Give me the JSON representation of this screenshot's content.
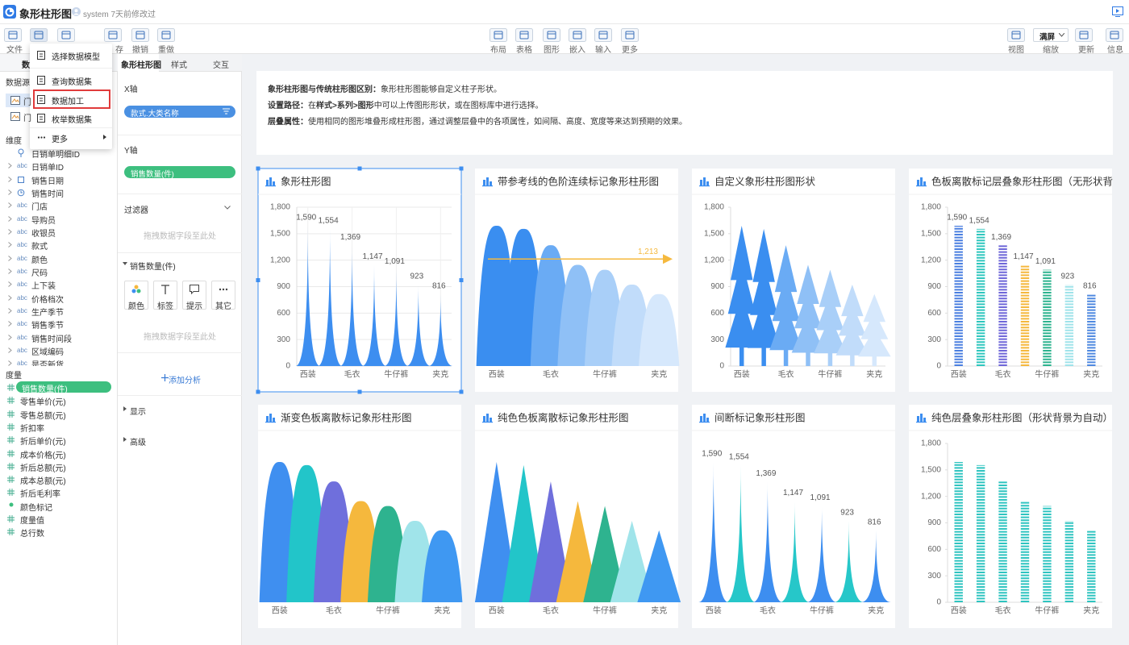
{
  "header": {
    "title": "象形柱形图",
    "status": "system 7天前修改过"
  },
  "toolbar": {
    "file": "文件",
    "save": "存",
    "undo": "撤销",
    "redo": "重做",
    "center": [
      "布局",
      "表格",
      "图形",
      "嵌入",
      "输入",
      "更多"
    ],
    "view": "视图",
    "zoom": "缩放",
    "zoom_value": "满屏",
    "refresh": "更新",
    "info": "信息"
  },
  "menu": {
    "items": [
      "选择数据模型",
      "查询数据集",
      "数据加工",
      "枚举数据集",
      "更多"
    ],
    "selected": 2
  },
  "left_panel": {
    "tab": "数",
    "source_label": "数据源",
    "sources": [
      "门",
      "门"
    ],
    "dimension_header": "维度",
    "dimensions": [
      {
        "name": "日销单明细ID",
        "kind": "pin"
      },
      {
        "name": "日销单ID",
        "icon": "abc"
      },
      {
        "name": "销售日期",
        "kind": "date"
      },
      {
        "name": "销售时间",
        "kind": "time"
      },
      {
        "name": "门店",
        "icon": "abc"
      },
      {
        "name": "导购员",
        "icon": "abc"
      },
      {
        "name": "收银员",
        "icon": "abc"
      },
      {
        "name": "款式",
        "icon": "abc"
      },
      {
        "name": "颜色",
        "icon": "abc"
      },
      {
        "name": "尺码",
        "icon": "abc"
      },
      {
        "name": "上下装",
        "icon": "abc"
      },
      {
        "name": "价格档次",
        "icon": "abc"
      },
      {
        "name": "生产季节",
        "icon": "abc"
      },
      {
        "name": "销售季节",
        "icon": "abc"
      },
      {
        "name": "销售时间段",
        "icon": "abc"
      },
      {
        "name": "区域编码",
        "icon": "abc"
      },
      {
        "name": "是否新货",
        "icon": "abc"
      }
    ],
    "measure_header": "度量",
    "measure_selected": 0,
    "measures": [
      {
        "name": "销售数量(件)",
        "kind": "number"
      },
      {
        "name": "零售单价(元)",
        "kind": "number"
      },
      {
        "name": "零售总额(元)",
        "kind": "number"
      },
      {
        "name": "折扣率",
        "kind": "number"
      },
      {
        "name": "折后单价(元)",
        "kind": "number"
      },
      {
        "name": "成本价格(元)",
        "kind": "number"
      },
      {
        "name": "折后总额(元)",
        "kind": "number"
      },
      {
        "name": "成本总额(元)",
        "kind": "number"
      },
      {
        "name": "折后毛利率",
        "kind": "number"
      },
      {
        "name": "颜色标记",
        "kind": "color"
      },
      {
        "name": "度量值",
        "kind": "number"
      },
      {
        "name": "总行数",
        "kind": "number"
      }
    ]
  },
  "config_panel": {
    "tabs": [
      "象形柱形图",
      "样式",
      "交互"
    ],
    "x_label": "X轴",
    "x_field": "款式.大类名称",
    "y_label": "Y轴",
    "y_field": "销售数量(件)",
    "filter": "过滤器",
    "drop_hint": "拖拽数据字段至此处",
    "section": "销售数量(件)",
    "buttons": [
      "颜色",
      "标签",
      "提示",
      "其它"
    ],
    "drop_hint_2": "拖拽数据字段至此处",
    "add_analysis": "添加分析",
    "display": "显示",
    "advanced": "高级"
  },
  "info": [
    [
      {
        "text": "象形柱形图与传统柱形图区别：",
        "bold": true
      },
      {
        "text": "象形柱形图能够自定义柱子形状。",
        "bold": false
      }
    ],
    [
      {
        "text": "设置路径：",
        "bold": true
      },
      {
        "text": "在",
        "bold": false
      },
      {
        "text": "样式>系列>图形",
        "bold": true
      },
      {
        "text": "中可以上传图形形状，或在图标库中进行选择。",
        "bold": false
      }
    ],
    [
      {
        "text": "层叠属性：",
        "bold": true
      },
      {
        "text": "使用相同的图形堆叠形成柱形图，通过调整层叠中的各项属性，如间隔、高度、宽度等来达到预期的效果。",
        "bold": false
      }
    ]
  ],
  "chart_data": [
    {
      "type": "bar",
      "shape": "spike",
      "title": "象形柱形图",
      "selected": true,
      "grid": true,
      "categories": [
        "西装",
        null,
        "毛衣",
        null,
        "牛仔裤",
        null,
        "夹克"
      ],
      "values": [
        1590,
        1554,
        1369,
        1147,
        1091,
        923,
        816
      ],
      "value_labels": [
        "1,590",
        "1,554",
        "1,369",
        "1,147",
        "1,091",
        "923",
        "816"
      ],
      "colors": [
        "#3d8ef0",
        "#3d8ef0",
        "#3d8ef0",
        "#3d8ef0",
        "#3d8ef0",
        "#3d8ef0",
        "#3d8ef0"
      ],
      "ylim": [
        0,
        1800
      ],
      "yticks": [
        0,
        300,
        600,
        900,
        {
          "value": 1200,
          "label": "1,200"
        },
        {
          "value": 1500,
          "label": "1,500"
        },
        {
          "value": 1800,
          "label": "1,800"
        }
      ]
    },
    {
      "type": "bar",
      "shape": "hill",
      "title": "带参考线的色阶连续标记象形柱形图",
      "categories": [
        "西装",
        null,
        "毛衣",
        null,
        "牛仔裤",
        null,
        "夹克"
      ],
      "values": [
        1590,
        1554,
        1369,
        1147,
        1091,
        923,
        816
      ],
      "colors": [
        "#3a8ef0",
        "#3a8ef0",
        "#6aabf4",
        "#8fc0f6",
        "#a9cff8",
        "#c1dcfa",
        "#d6e8fc"
      ],
      "ylim": [
        0,
        1800
      ],
      "reference_line": {
        "value": 1213,
        "label": "1,213",
        "color": "#f5b93e"
      }
    },
    {
      "type": "bar",
      "shape": "tree",
      "title": "自定义象形柱形图形状",
      "categories": [
        "西装",
        null,
        "毛衣",
        null,
        "牛仔裤",
        null,
        "夹克"
      ],
      "values": [
        1590,
        1554,
        1369,
        1147,
        1091,
        923,
        816
      ],
      "colors": [
        "#3a8ef0",
        "#3a8ef0",
        "#6aabf4",
        "#8fc0f6",
        "#a9cff8",
        "#c1dcfa",
        "#d6e8fc"
      ],
      "ylim": [
        0,
        1800
      ],
      "yticks": [
        0,
        300,
        600,
        900,
        {
          "value": 1200,
          "label": "1,200"
        },
        {
          "value": 1500,
          "label": "1,500"
        },
        {
          "value": 1800,
          "label": "1,800"
        }
      ]
    },
    {
      "type": "bar",
      "shape": "dashed",
      "title": "色板离散标记层叠象形柱形图（无形状背",
      "categories": [
        "西装",
        null,
        "毛衣",
        null,
        "牛仔裤",
        null,
        "夹克"
      ],
      "values": [
        1590,
        1554,
        1369,
        1147,
        1091,
        923,
        816
      ],
      "value_labels": [
        "1,590",
        "1,554",
        "1,369",
        "1,147",
        "1,091",
        "923",
        "816"
      ],
      "colors": [
        "#4a7fe0",
        "#2ec6be",
        "#6e66d8",
        "#f5b83d",
        "#2cb38e",
        "#9fe3ea",
        "#4f89e0"
      ],
      "ylim": [
        0,
        1800
      ],
      "yticks": [
        0,
        300,
        600,
        900,
        {
          "value": 1200,
          "label": "1,200"
        },
        {
          "value": 1500,
          "label": "1,500"
        },
        {
          "value": 1800,
          "label": "1,800"
        }
      ]
    },
    {
      "type": "bar",
      "shape": "hill",
      "title": "渐变色板离散标记象形柱形图",
      "categories": [
        "西装",
        null,
        "毛衣",
        null,
        "牛仔裤",
        null,
        "夹克"
      ],
      "values": [
        1590,
        1554,
        1369,
        1147,
        1091,
        923,
        816
      ],
      "colors": [
        "#3f8ff0",
        "#22c5c9",
        "#6f6fdc",
        "#f5b83d",
        "#2eb38f",
        "#a0e4ea",
        "#3f98f2"
      ],
      "ylim": [
        0,
        1800
      ]
    },
    {
      "type": "bar",
      "shape": "triangle",
      "title": "纯色色板离散标记象形柱形图",
      "categories": [
        "西装",
        null,
        "毛衣",
        null,
        "牛仔裤",
        null,
        "夹克"
      ],
      "values": [
        1590,
        1554,
        1369,
        1147,
        1091,
        923,
        816
      ],
      "colors": [
        "#3f8ff0",
        "#22c5c9",
        "#6f6fdc",
        "#f5b83d",
        "#2eb38f",
        "#a0e4ea",
        "#3f98f2"
      ],
      "ylim": [
        0,
        1800
      ]
    },
    {
      "type": "bar",
      "shape": "spike",
      "title": "间断标记象形柱形图",
      "categories": [
        "西装",
        null,
        "毛衣",
        null,
        "牛仔裤",
        null,
        "夹克"
      ],
      "values": [
        1590,
        1554,
        1369,
        1147,
        1091,
        923,
        816
      ],
      "value_labels": [
        "1,590",
        "1,554",
        "1,369",
        "1,147",
        "1,091",
        "923",
        "816"
      ],
      "colors": [
        "#3d8ef0",
        "#26c7c9",
        "#3d8ef0",
        "#26c7c9",
        "#3d8ef0",
        "#26c7c9",
        "#3d8ef0"
      ],
      "ylim": [
        0,
        1800
      ]
    },
    {
      "type": "bar",
      "shape": "dashed",
      "title": "纯色层叠象形柱形图（形状背景为自动）",
      "categories": [
        "西装",
        null,
        "毛衣",
        null,
        "牛仔裤",
        null,
        "夹克"
      ],
      "values": [
        1590,
        1554,
        1369,
        1147,
        1091,
        923,
        816
      ],
      "colors": [
        "#2ec4c0",
        "#2ec4c0",
        "#2ec4c0",
        "#2ec4c0",
        "#2ec4c0",
        "#2ec4c0",
        "#2ec4c0"
      ],
      "ylim": [
        0,
        1800
      ],
      "yticks": [
        0,
        300,
        600,
        900,
        {
          "value": 1200,
          "label": "1,200"
        },
        {
          "value": 1500,
          "label": "1,500"
        },
        {
          "value": 1800,
          "label": "1,800"
        }
      ]
    }
  ]
}
